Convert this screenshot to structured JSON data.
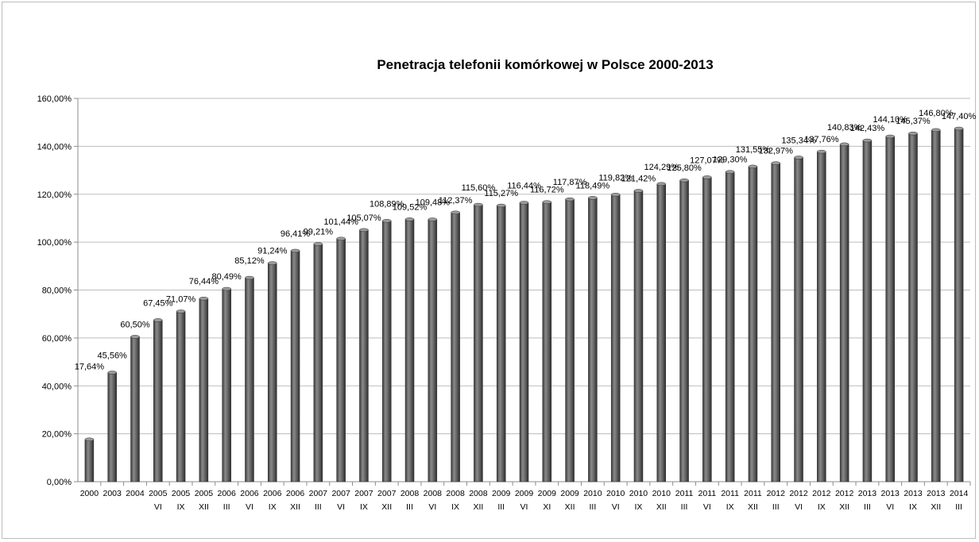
{
  "chart_data": {
    "type": "bar",
    "title": "Penetracja telefonii komórkowej w Polsce 2000-2013",
    "xlabel": "",
    "ylabel": "",
    "ylim": [
      0,
      160
    ],
    "y_ticks": [
      "0,00%",
      "20,00%",
      "40,00%",
      "60,00%",
      "80,00%",
      "100,00%",
      "120,00%",
      "140,00%",
      "160,00%"
    ],
    "grid": true,
    "legend": "none",
    "bar_color": "#555555",
    "categories": [
      {
        "year": "2000",
        "sub": ""
      },
      {
        "year": "2003",
        "sub": ""
      },
      {
        "year": "2004",
        "sub": ""
      },
      {
        "year": "2005",
        "sub": "VI"
      },
      {
        "year": "2005",
        "sub": "IX"
      },
      {
        "year": "2005",
        "sub": "XII"
      },
      {
        "year": "2006",
        "sub": "III"
      },
      {
        "year": "2006",
        "sub": "VI"
      },
      {
        "year": "2006",
        "sub": "IX"
      },
      {
        "year": "2006",
        "sub": "XII"
      },
      {
        "year": "2007",
        "sub": "III"
      },
      {
        "year": "2007",
        "sub": "VI"
      },
      {
        "year": "2007",
        "sub": "IX"
      },
      {
        "year": "2007",
        "sub": "XII"
      },
      {
        "year": "2008",
        "sub": "III"
      },
      {
        "year": "2008",
        "sub": "VI"
      },
      {
        "year": "2008",
        "sub": "IX"
      },
      {
        "year": "2008",
        "sub": "XII"
      },
      {
        "year": "2009",
        "sub": "III"
      },
      {
        "year": "2009",
        "sub": "VI"
      },
      {
        "year": "2009",
        "sub": "XI"
      },
      {
        "year": "2009",
        "sub": "XII"
      },
      {
        "year": "2010",
        "sub": "III"
      },
      {
        "year": "2010",
        "sub": "VI"
      },
      {
        "year": "2010",
        "sub": "IX"
      },
      {
        "year": "2010",
        "sub": "XII"
      },
      {
        "year": "2011",
        "sub": "III"
      },
      {
        "year": "2011",
        "sub": "VI"
      },
      {
        "year": "2011",
        "sub": "IX"
      },
      {
        "year": "2011",
        "sub": "XII"
      },
      {
        "year": "2012",
        "sub": "III"
      },
      {
        "year": "2012",
        "sub": "VI"
      },
      {
        "year": "2012",
        "sub": "IX"
      },
      {
        "year": "2012",
        "sub": "XII"
      },
      {
        "year": "2013",
        "sub": "III"
      },
      {
        "year": "2013",
        "sub": "VI"
      },
      {
        "year": "2013",
        "sub": "IX"
      },
      {
        "year": "2013",
        "sub": "XII"
      },
      {
        "year": "2014",
        "sub": "III"
      }
    ],
    "values": [
      17.64,
      45.56,
      60.5,
      67.45,
      71.07,
      76.44,
      80.49,
      85.12,
      91.24,
      96.41,
      99.21,
      101.44,
      105.07,
      108.89,
      109.52,
      109.48,
      112.37,
      115.6,
      115.27,
      116.44,
      116.72,
      117.87,
      118.49,
      119.82,
      121.42,
      124.29,
      125.8,
      127.07,
      129.3,
      131.55,
      132.97,
      135.34,
      137.76,
      140.83,
      142.43,
      144.1,
      145.37,
      146.8,
      147.4
    ],
    "labels": [
      "17,64%",
      "45,56%",
      "60,50%",
      "67,45%",
      "71,07%",
      "76,44%",
      "80,49%",
      "85,12%",
      "91,24%",
      "96,41%",
      "99,21%",
      "101,44%",
      "105,07%",
      "108,89%",
      "109,52%",
      "109,48%",
      "112,37%",
      "115,60%",
      "115,27%",
      "116,44%",
      "116,72%",
      "117,87%",
      "118,49%",
      "119,82%",
      "121,42%",
      "124,29%",
      "125,80%",
      "127,07%",
      "129,30%",
      "131,55%",
      "132,97%",
      "135,34%",
      "137,76%",
      "140,83%",
      "142,43%",
      "144,10%",
      "145,37%",
      "146,80%",
      "147,40%"
    ]
  }
}
